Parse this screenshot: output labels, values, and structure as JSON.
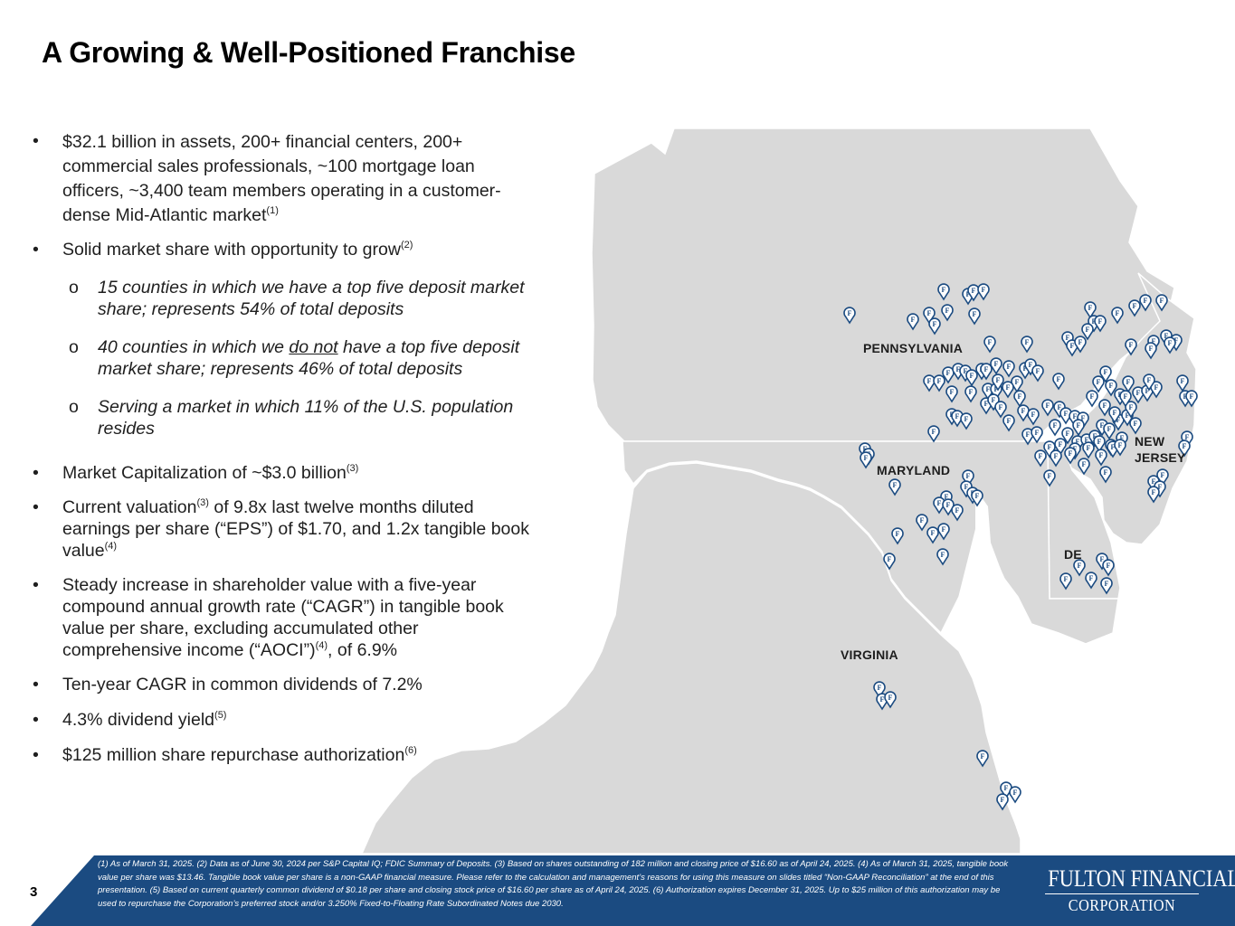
{
  "page": {
    "title": "A Growing & Well-Positioned Franchise",
    "page_number": "3"
  },
  "bullets": {
    "b1": {
      "dot": "•",
      "l1": "$32.1 billion in assets, 200+ financial centers, 200+",
      "l2": "commercial sales professionals, ~100 mortgage loan",
      "l3": "officers, ~3,400 team members operating in a customer-",
      "l4": "dense Mid-Atlantic market",
      "sup": "(1)"
    },
    "b2": {
      "dot": "•",
      "text": "Solid market share with opportunity to grow",
      "sup": "(2)",
      "subs": [
        {
          "marker": "o",
          "l1": "15 counties in which we have a top five deposit market",
          "l2": "share; represents  54% of total deposits"
        },
        {
          "marker": "o",
          "l1_a": "40 counties in which we ",
          "l1_u": "do not",
          "l1_b": " have a top five deposit",
          "l2": "market share; represents  46% of total deposits"
        },
        {
          "marker": "o",
          "l1": "Serving a market in which 11% of the U.S. population",
          "l2": "resides"
        }
      ]
    },
    "b3": {
      "dot": "•",
      "text": "Market Capitalization of ~$3.0 billion",
      "sup": "(3)"
    },
    "b4": {
      "dot": "•",
      "l1_a": "Current valuation",
      "sup1": "(3)",
      "l1_b": " of 9.8x last twelve months diluted",
      "l2": "earnings per share (“EPS”) of $1.70, and 1.2x tangible book",
      "l3": "value",
      "sup2": "(4)"
    },
    "b5": {
      "dot": "•",
      "l1": "Steady increase in shareholder value with a five-year",
      "l2": "compound annual growth rate (“CAGR”) in tangible book",
      "l3": "value per share, excluding accumulated other",
      "l4_a": "comprehensive income (“AOCI”)",
      "sup": "(4)",
      "l4_b": ", of 6.9%"
    },
    "b6": {
      "dot": "•",
      "text": "Ten-year CAGR in common dividends of 7.2%"
    },
    "b7": {
      "dot": "•",
      "text": "4.3% dividend yield",
      "sup": "(5)"
    },
    "b8": {
      "dot": "•",
      "text": "$125 million share repurchase authorization",
      "sup": "(6)"
    }
  },
  "map": {
    "labels": {
      "pennsylvania": "PENNSYLVANIA",
      "maryland": "MARYLAND",
      "virginia": "VIRGINIA",
      "delaware": "DE",
      "new_jersey_1": "NEW",
      "new_jersey_2": "JERSEY"
    },
    "marker_letter": "F",
    "land_color": "#d9d9d9",
    "marker_color": "#1b4b81"
  },
  "footer": {
    "footnote": "(1) As of March 31, 2025. (2) Data as of June 30, 2024 per S&P Capital IQ; FDIC Summary of Deposits. (3) Based on shares outstanding of 182 million and closing price of $16.60 as of April 24, 2025. (4) As of March 31, 2025, tangible book value per share was $13.46. Tangible book value per share is a non-GAAP financial measure. Please refer to the calculation and management’s reasons for using this measure on slides titled “Non-GAAP Reconciliation” at the end of this presentation. (5) Based on current quarterly common dividend of $0.18 per share and closing stock price of $16.60 per share as of April 24, 2025. (6) Authorization expires December 31, 2025. Up to $25 million of this authorization may be used to repurchase the Corporation’s preferred stock and/or 3.250% Fixed-to-Floating Rate Subordinated Notes due 2030.",
    "logo_top": "FULTON FINANCIAL",
    "logo_bottom": "CORPORATION",
    "band_color": "#1b4b81"
  }
}
